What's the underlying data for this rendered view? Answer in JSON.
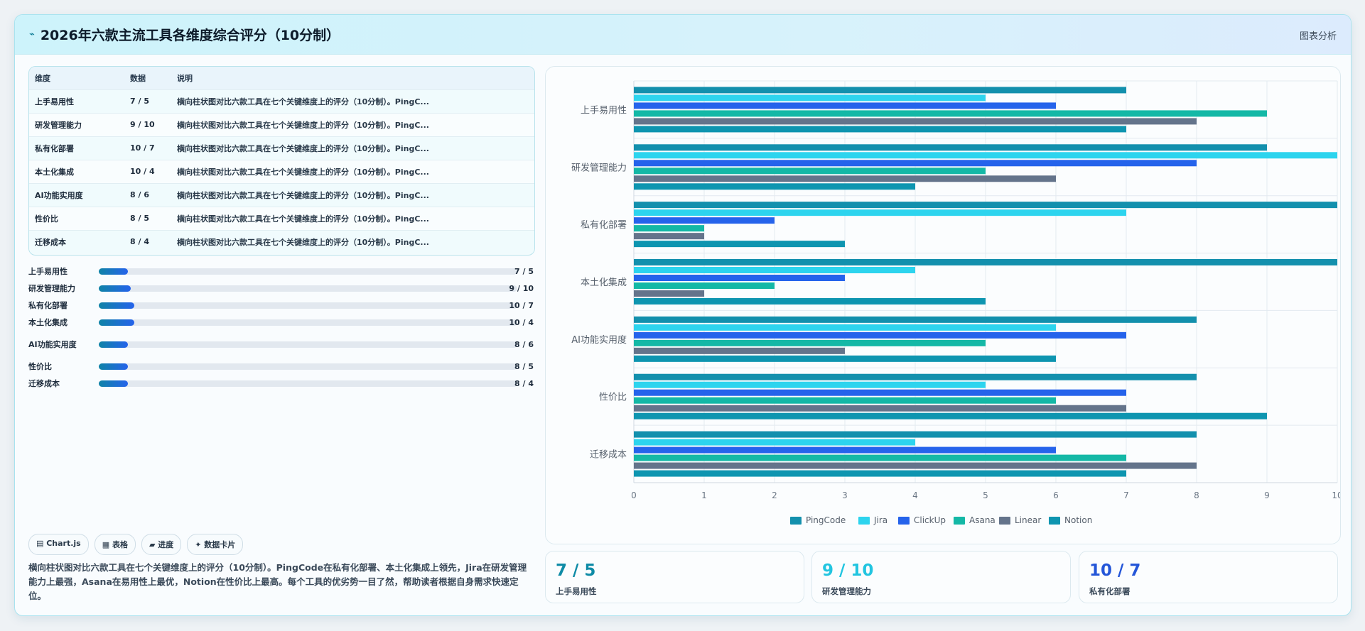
{
  "header": {
    "icon": "chart-icon",
    "title": "2026年六款主流工具各维度综合评分（10分制）",
    "right_label": "图表分析"
  },
  "table": {
    "headers": [
      "维度",
      "数据",
      "说明"
    ],
    "rows": [
      {
        "dim": "上手易用性",
        "val": "7 / 5",
        "desc": "横向柱状图对比六款工具在七个关键维度上的评分（10分制）。PingC..."
      },
      {
        "dim": "研发管理能力",
        "val": "9 / 10",
        "desc": "横向柱状图对比六款工具在七个关键维度上的评分（10分制）。PingC..."
      },
      {
        "dim": "私有化部署",
        "val": "10 / 7",
        "desc": "横向柱状图对比六款工具在七个关键维度上的评分（10分制）。PingC..."
      },
      {
        "dim": "本土化集成",
        "val": "10 / 4",
        "desc": "横向柱状图对比六款工具在七个关键维度上的评分（10分制）。PingC..."
      },
      {
        "dim": "AI功能实用度",
        "val": "8 / 6",
        "desc": "横向柱状图对比六款工具在七个关键维度上的评分（10分制）。PingC..."
      },
      {
        "dim": "性价比",
        "val": "8 / 5",
        "desc": "横向柱状图对比六款工具在七个关键维度上的评分（10分制）。PingC..."
      },
      {
        "dim": "迁移成本",
        "val": "8 / 4",
        "desc": "横向柱状图对比六款工具在七个关键维度上的评分（10分制）。PingC..."
      }
    ]
  },
  "progress": [
    {
      "label": "上手易用性",
      "value": "7 / 5",
      "fraction": 0.07
    },
    {
      "label": "研发管理能力",
      "value": "9 / 10",
      "fraction": 0.077
    },
    {
      "label": "私有化部署",
      "value": "10 / 7",
      "fraction": 0.085
    },
    {
      "label": "本土化集成",
      "value": "10 / 4",
      "fraction": 0.085
    },
    {
      "label": "AI功能实用度",
      "value": "8 / 6",
      "fraction": 0.07
    },
    {
      "label": "性价比",
      "value": "8 / 5",
      "fraction": 0.07
    },
    {
      "label": "迁移成本",
      "value": "8 / 4",
      "fraction": 0.07
    }
  ],
  "chips": [
    "▤ Chart.js",
    "▦ 表格",
    "▰ 进度",
    "✦ 数据卡片"
  ],
  "caption": "横向柱状图对比六款工具在七个关键维度上的评分（10分制）。PingCode在私有化部署、本土化集成上领先，Jira在研发管理能力上最强，Asana在易用性上最优，Notion在性价比上最高。每个工具的优劣势一目了然，帮助读者根据自身需求快速定位。",
  "kpis": [
    {
      "value": "7 / 5",
      "label": "上手易用性",
      "color": "#0e8ba6"
    },
    {
      "value": "9 / 10",
      "label": "研发管理能力",
      "color": "#22c5e0"
    },
    {
      "value": "10 / 7",
      "label": "私有化部署",
      "color": "#2456d8"
    }
  ],
  "chart_data": {
    "type": "bar",
    "orientation": "horizontal",
    "categories": [
      "上手易用性",
      "研发管理能力",
      "私有化部署",
      "本土化集成",
      "AI功能实用度",
      "性价比",
      "迁移成本"
    ],
    "series": [
      {
        "name": "PingCode",
        "color": "#1390ad",
        "values": [
          7,
          9,
          10,
          10,
          8,
          8,
          8
        ]
      },
      {
        "name": "Jira",
        "color": "#2dd4ee",
        "values": [
          5,
          10,
          7,
          4,
          6,
          5,
          4
        ]
      },
      {
        "name": "ClickUp",
        "color": "#2563eb",
        "values": [
          6,
          8,
          2,
          3,
          7,
          7,
          6
        ]
      },
      {
        "name": "Asana",
        "color": "#14b8a6",
        "values": [
          9,
          5,
          1,
          2,
          5,
          6,
          7
        ]
      },
      {
        "name": "Linear",
        "color": "#64748b",
        "values": [
          8,
          6,
          1,
          1,
          3,
          7,
          8
        ]
      },
      {
        "name": "Notion",
        "color": "#0e95b0",
        "values": [
          7,
          4,
          3,
          5,
          6,
          9,
          7
        ]
      }
    ],
    "xlim": [
      0,
      10
    ],
    "xticks": [
      "0",
      "1",
      "2",
      "3",
      "4",
      "5",
      "6",
      "7",
      "8",
      "9",
      "10"
    ],
    "grid": true,
    "legend_position": "bottom"
  }
}
